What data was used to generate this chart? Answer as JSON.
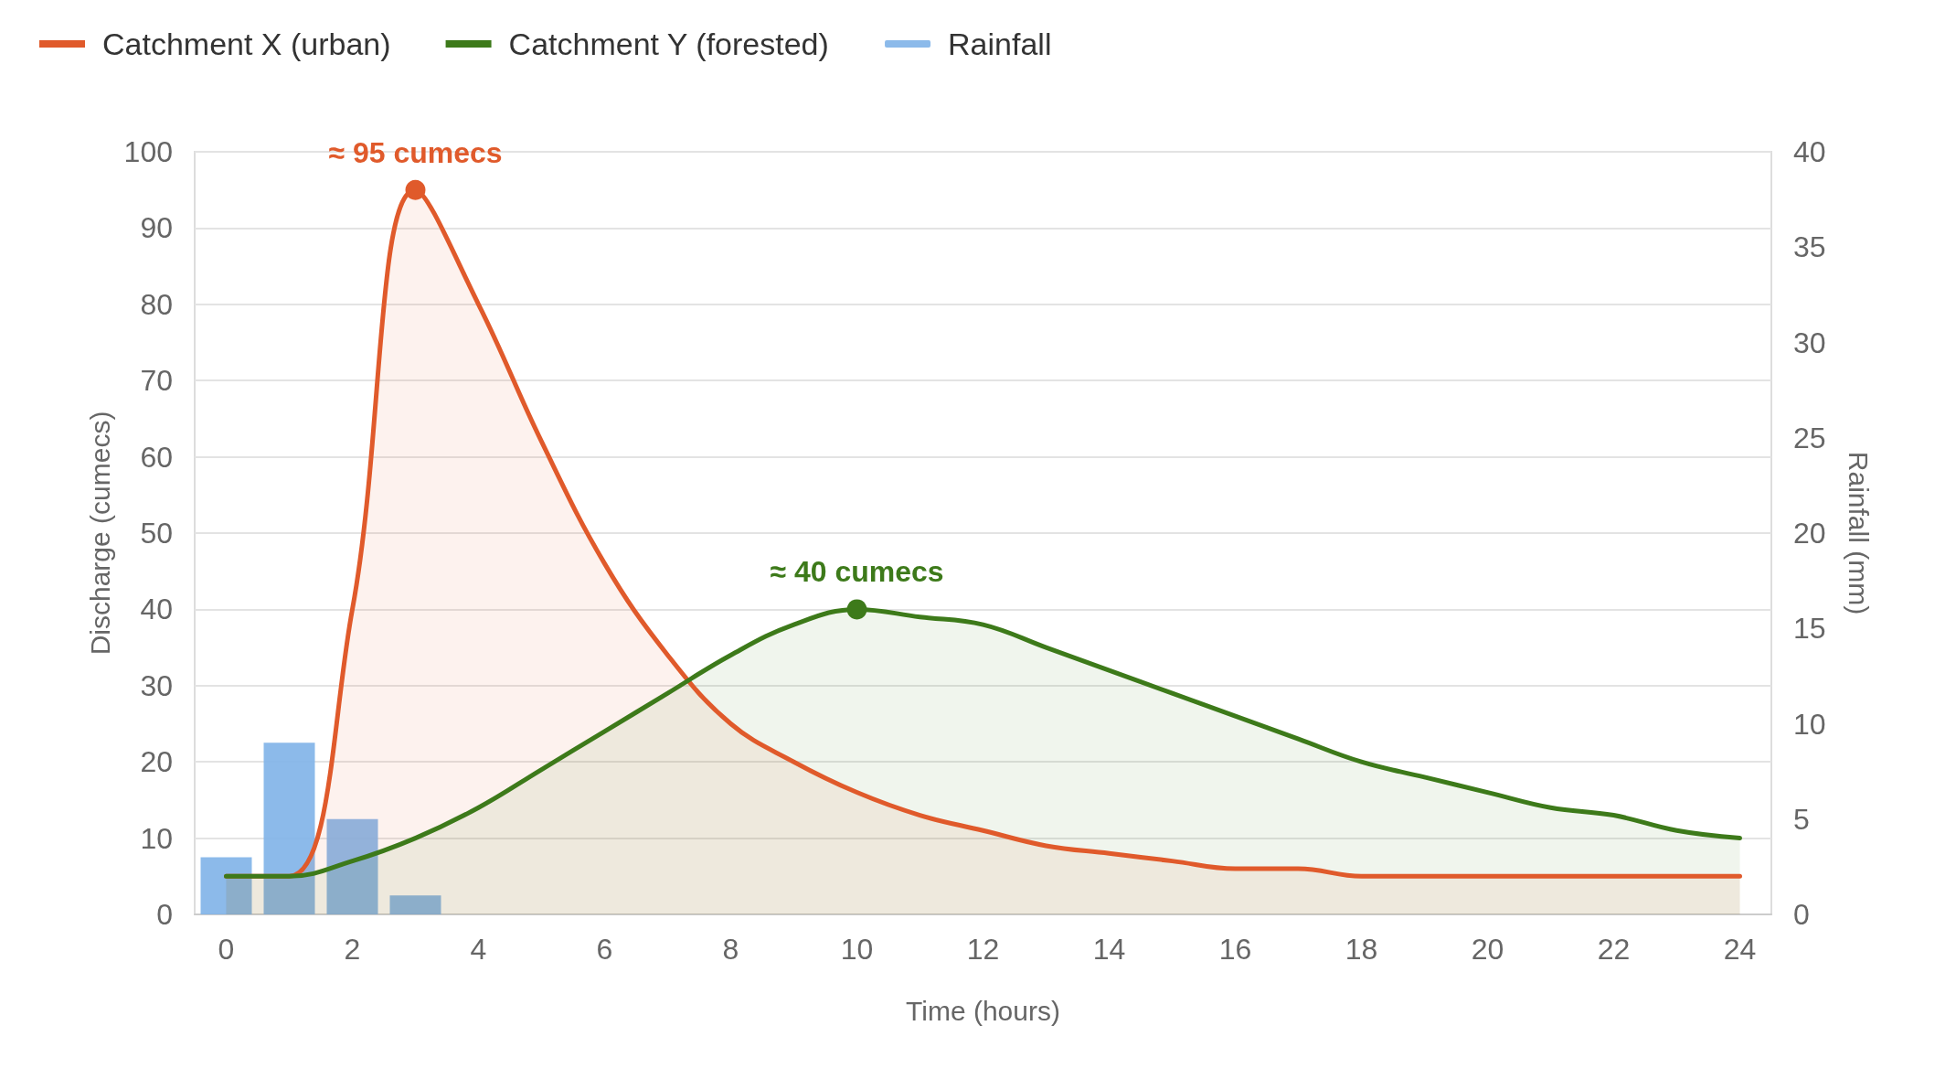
{
  "chart_data": {
    "type": "area",
    "xlabel": "Time (hours)",
    "ylabel": "Discharge (cumecs)",
    "y2label": "Rainfall (mm)",
    "xlim": [
      -0.5,
      24.5
    ],
    "xticks": [
      0,
      2,
      4,
      6,
      8,
      10,
      12,
      14,
      16,
      18,
      20,
      22,
      24
    ],
    "ylim": [
      0,
      100
    ],
    "yticks": [
      0,
      10,
      20,
      30,
      40,
      50,
      60,
      70,
      80,
      90,
      100
    ],
    "y2lim": [
      0,
      40
    ],
    "y2ticks": [
      0,
      5,
      10,
      15,
      20,
      25,
      30,
      35,
      40
    ],
    "grid": "y",
    "legend": "top left",
    "marker": "none",
    "line_style": "solid",
    "x": [
      0,
      1,
      2,
      3,
      4,
      5,
      6,
      7,
      8,
      9,
      10,
      11,
      12,
      13,
      14,
      15,
      16,
      17,
      18,
      19,
      20,
      21,
      22,
      23,
      24
    ],
    "series": [
      {
        "name": "Catchment X (urban)",
        "color": "#e05a2b",
        "values": [
          5,
          5,
          40,
          95,
          80,
          62,
          46,
          34,
          25,
          20,
          16,
          13,
          11,
          9,
          8,
          7,
          6,
          6,
          5,
          5,
          5,
          5,
          5,
          5,
          5
        ]
      },
      {
        "name": "Catchment Y (forested)",
        "color": "#3d7a1a",
        "values": [
          5,
          5,
          7,
          10,
          14,
          19,
          24,
          29,
          34,
          38,
          40,
          39,
          38,
          35,
          32,
          29,
          26,
          23,
          20,
          18,
          16,
          14,
          13,
          11,
          10
        ]
      },
      {
        "name": "Rainfall",
        "type": "bar",
        "axis": "y2",
        "color": "#7fb3e8",
        "x": [
          0,
          1,
          2,
          3
        ],
        "values": [
          3,
          9,
          5,
          1
        ]
      }
    ],
    "annotations": [
      {
        "text": "≈ 95 cumecs",
        "x": 3,
        "y": 95
      },
      {
        "text": "≈ 40 cumecs",
        "x": 10,
        "y": 40
      }
    ]
  }
}
